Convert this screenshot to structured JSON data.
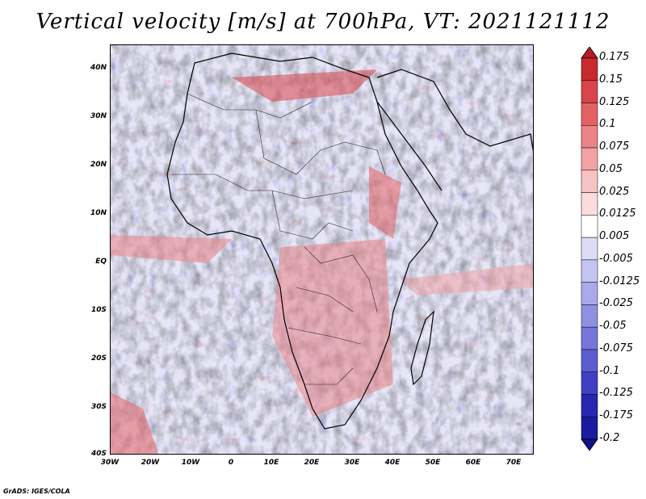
{
  "title": "Vertical velocity [m/s] at 700hPa, VT: 2021121112",
  "credit": "GrADS: IGES/COLA",
  "map": {
    "lat_ticks": [
      "40N",
      "30N",
      "20N",
      "10N",
      "EQ",
      "10S",
      "20S",
      "30S",
      "40S"
    ],
    "lon_ticks": [
      "30W",
      "20W",
      "10W",
      "0",
      "10E",
      "20E",
      "30E",
      "40E",
      "50E",
      "60E",
      "70E"
    ],
    "lat_range": [
      -40,
      45
    ],
    "lon_range": [
      -30,
      75
    ]
  },
  "colorbar": {
    "levels": [
      "0.175",
      "0.15",
      "0.125",
      "0.1",
      "0.075",
      "0.05",
      "0.025",
      "0.0125",
      "0.005",
      "-0.005",
      "-0.0125",
      "-0.025",
      "-0.05",
      "-0.075",
      "-0.1",
      "-0.125",
      "-0.175",
      "-0.2"
    ],
    "colors": [
      "#b21d22",
      "#c82a2e",
      "#d8454a",
      "#e46266",
      "#ec8386",
      "#f2a2a4",
      "#f7c2c3",
      "#fbdcdc",
      "#ffffff",
      "#dcdcf7",
      "#c4c4f0",
      "#aaaaea",
      "#9090e2",
      "#7676da",
      "#5c5cd0",
      "#4040c4",
      "#2626b0",
      "#1a1aa0",
      "#12108c"
    ]
  }
}
